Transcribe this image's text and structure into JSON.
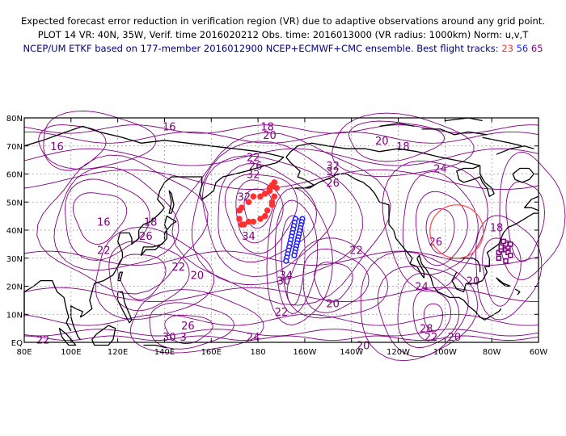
{
  "title": {
    "line1": "Expected forecast error reduction in verification region (VR) due to adaptive observations around any grid point.",
    "line2": "PLOT 14 VR: 40N, 35W, Verif. time 2016020212 Obs. time: 2016013000 (VR radius: 1000km) Norm: u,v,T",
    "line3_prefix": "NCEP/UM ETKF based on 177-member 2016012900 NCEP+ECMWF+CMC ensemble. Best flight tracks:",
    "track_ids": [
      "23",
      "56",
      "65"
    ]
  },
  "colors": {
    "contour": "#800080",
    "coast": "#000000",
    "grid": "#999999",
    "track23": "#ff3030",
    "track56": "#2020ff",
    "track65": "#800080",
    "vr_circle": "#ff5050"
  },
  "axes": {
    "lat_labels": [
      "80N",
      "70N",
      "60N",
      "50N",
      "40N",
      "30N",
      "20N",
      "10N",
      "EQ"
    ],
    "lon_labels": [
      "80E",
      "100E",
      "120E",
      "140E",
      "160E",
      "180",
      "160W",
      "140W",
      "120W",
      "100W",
      "80W",
      "60W"
    ]
  },
  "contour_labels": [
    {
      "text": "16",
      "lon": 142,
      "lat": 77
    },
    {
      "text": "16",
      "lon": 94,
      "lat": 70
    },
    {
      "text": "18",
      "lon": 184,
      "lat": 77
    },
    {
      "text": "20",
      "lon": 185,
      "lat": 74
    },
    {
      "text": "20",
      "lon": 233,
      "lat": 72
    },
    {
      "text": "18",
      "lon": 242,
      "lat": 70
    },
    {
      "text": "24",
      "lon": 258,
      "lat": 62
    },
    {
      "text": "22",
      "lon": 178,
      "lat": 66
    },
    {
      "text": "26",
      "lon": 179,
      "lat": 63
    },
    {
      "text": "32",
      "lon": 178,
      "lat": 60
    },
    {
      "text": "32",
      "lon": 212,
      "lat": 63
    },
    {
      "text": "32",
      "lon": 212,
      "lat": 61
    },
    {
      "text": "26",
      "lon": 212,
      "lat": 57
    },
    {
      "text": "32",
      "lon": 174,
      "lat": 52
    },
    {
      "text": "34",
      "lon": 176,
      "lat": 38
    },
    {
      "text": "16",
      "lon": 114,
      "lat": 43
    },
    {
      "text": "18",
      "lon": 134,
      "lat": 43
    },
    {
      "text": "26",
      "lon": 132,
      "lat": 38
    },
    {
      "text": "22",
      "lon": 114,
      "lat": 33
    },
    {
      "text": "22",
      "lon": 146,
      "lat": 27
    },
    {
      "text": "20",
      "lon": 154,
      "lat": 24
    },
    {
      "text": "34",
      "lon": 192,
      "lat": 24
    },
    {
      "text": "30",
      "lon": 191,
      "lat": 22
    },
    {
      "text": "22",
      "lon": 222,
      "lat": 33
    },
    {
      "text": "26",
      "lon": 256,
      "lat": 36
    },
    {
      "text": "18",
      "lon": 282,
      "lat": 41
    },
    {
      "text": "24",
      "lon": 250,
      "lat": 20
    },
    {
      "text": "20",
      "lon": 272,
      "lat": 22
    },
    {
      "text": "22",
      "lon": 190,
      "lat": 11
    },
    {
      "text": "20",
      "lon": 212,
      "lat": 14
    },
    {
      "text": "26",
      "lon": 150,
      "lat": 6
    },
    {
      "text": "28",
      "lon": 252,
      "lat": 5
    },
    {
      "text": "22",
      "lon": 254,
      "lat": 2
    },
    {
      "text": "20",
      "lon": 264,
      "lat": 2
    },
    {
      "text": "24",
      "lon": 178,
      "lat": 2
    },
    {
      "text": "30",
      "lon": 142,
      "lat": 2
    },
    {
      "text": "3",
      "lon": 148,
      "lat": 2
    },
    {
      "text": "22",
      "lon": 88,
      "lat": 1
    },
    {
      "text": "20",
      "lon": 225,
      "lat": -1
    }
  ]
}
